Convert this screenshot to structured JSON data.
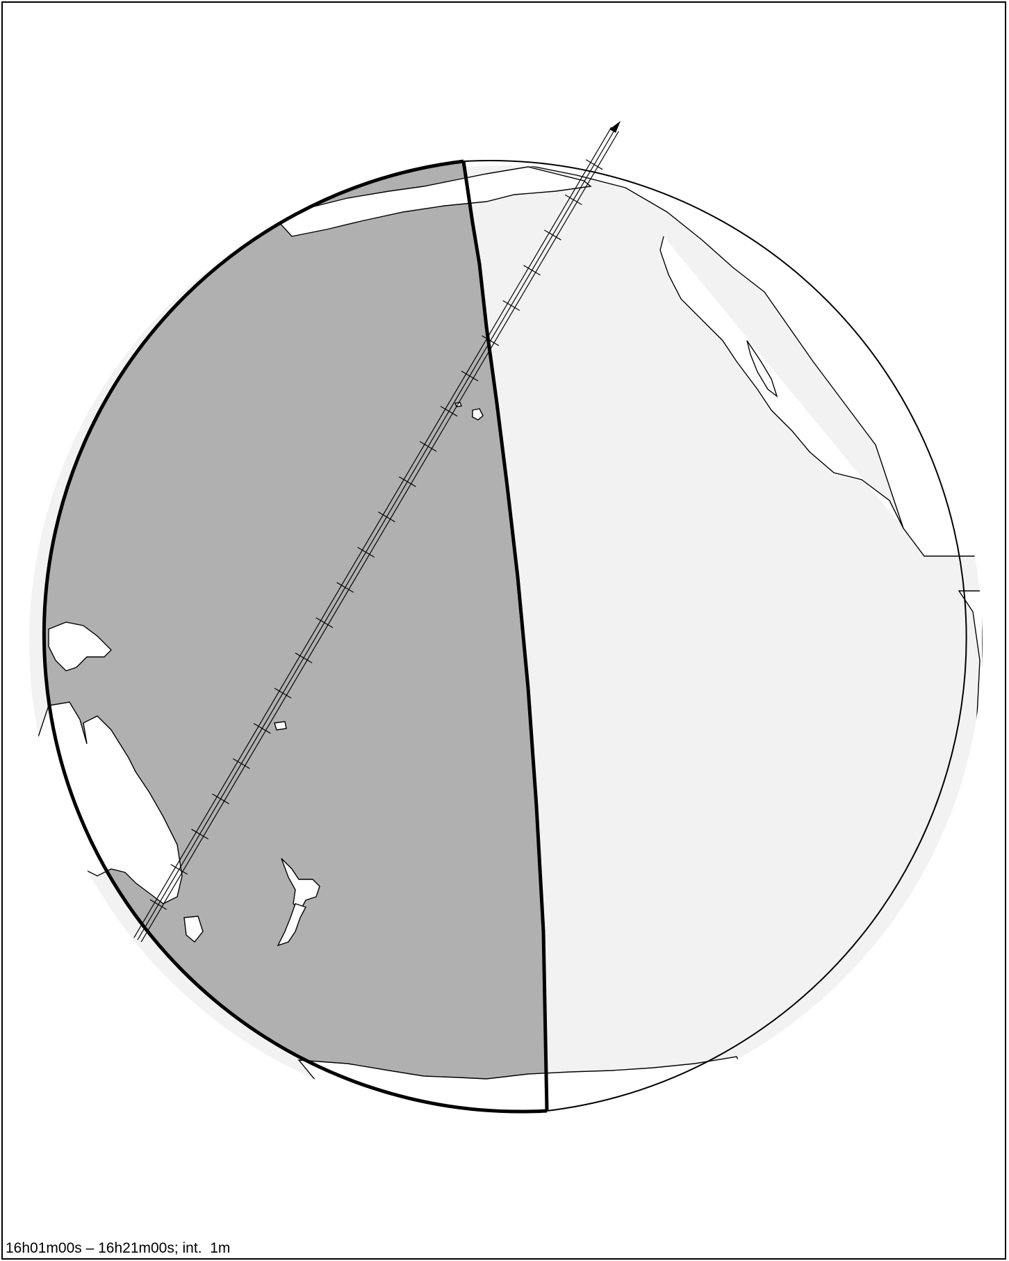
{
  "caption": "16h01m00s – 16h21m00s; int.  1m",
  "colors": {
    "night": "#b0b0b0",
    "day": "#f2f2f2",
    "land": "#ffffff",
    "outline": "#000000"
  },
  "track": {
    "start_time": "16h01m00s",
    "end_time": "16h21m00s",
    "interval": "1m"
  }
}
